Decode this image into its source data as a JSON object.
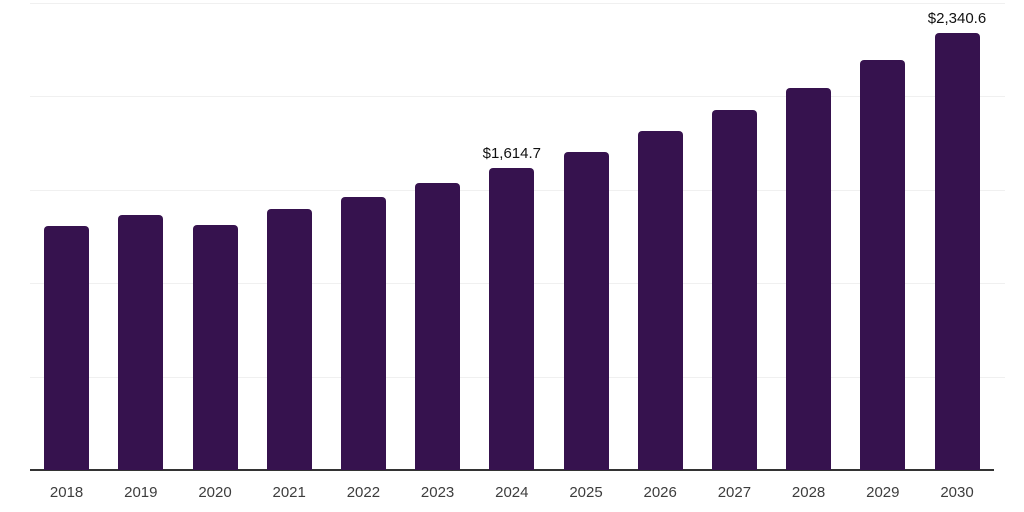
{
  "chart_data": {
    "type": "bar",
    "title": "",
    "xlabel": "",
    "ylabel": "",
    "categories": [
      "2018",
      "2019",
      "2020",
      "2021",
      "2022",
      "2023",
      "2024",
      "2025",
      "2026",
      "2027",
      "2028",
      "2029",
      "2030"
    ],
    "values": [
      1308,
      1366,
      1313,
      1398,
      1462,
      1537,
      1614.7,
      1703,
      1815,
      1927,
      2044,
      2194,
      2340.6
    ],
    "value_labels": [
      {
        "category": "2024",
        "text": "$1,614.7"
      },
      {
        "category": "2030",
        "text": "$2,340.6"
      }
    ],
    "ylim": [
      0,
      2500
    ],
    "gridline_step": 500,
    "y_tick_labels_visible": false,
    "grid": "horizontal",
    "legend": "none",
    "colors": {
      "bar": "#36124e",
      "axis_line": "#333333",
      "gridline": "#f0f0f0",
      "tick_label": "#3d3d3d",
      "value_label": "#111111",
      "background": "#ffffff"
    }
  }
}
